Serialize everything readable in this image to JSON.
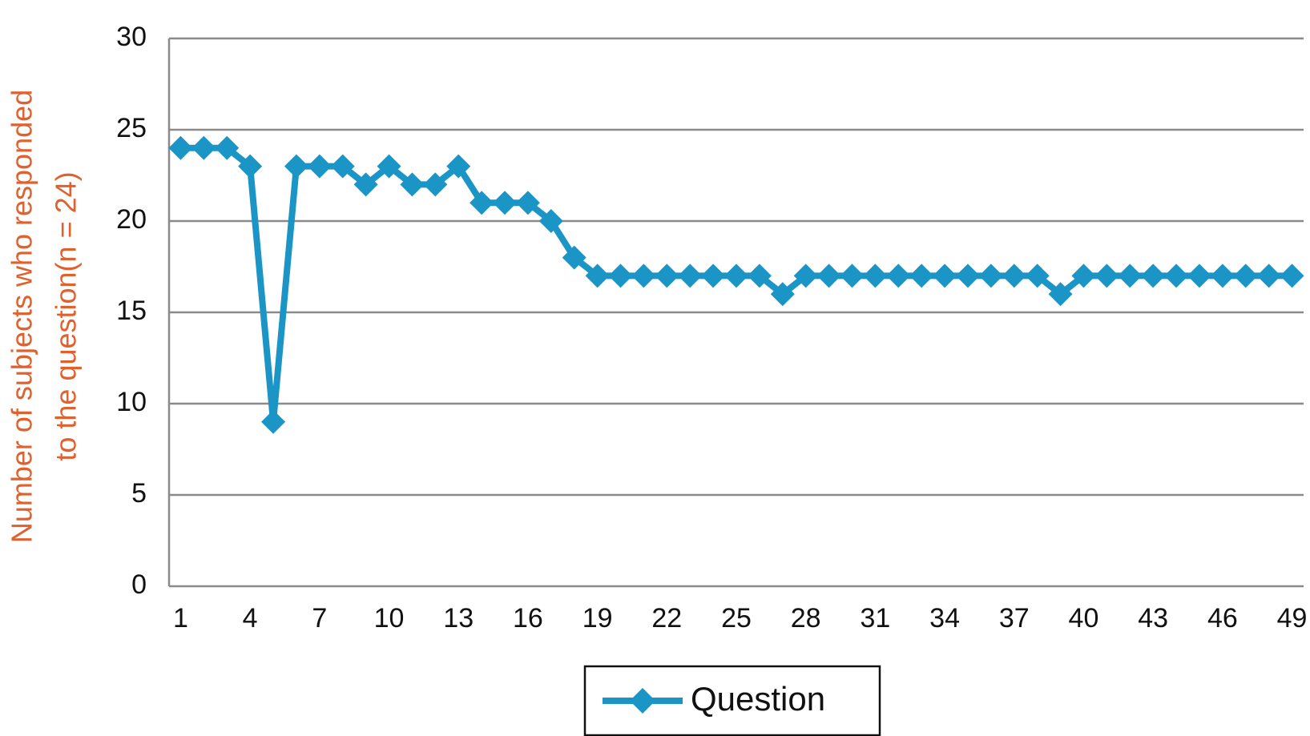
{
  "chart_data": {
    "type": "line",
    "y_label": [
      "Number of subjects who responded",
      "to the question(n = 24)"
    ],
    "categories": [
      "1",
      null,
      null,
      "4",
      null,
      null,
      "7",
      null,
      null,
      "10",
      null,
      null,
      "13",
      null,
      null,
      "16",
      null,
      null,
      "19",
      null,
      null,
      "22",
      null,
      null,
      "25",
      null,
      null,
      "28",
      null,
      null,
      "31",
      null,
      null,
      "34",
      null,
      null,
      "37",
      null,
      null,
      "40",
      null,
      null,
      "43",
      null,
      null,
      "46",
      null,
      null,
      "49"
    ],
    "series": [
      {
        "name": "Question",
        "color": "#1b95c6",
        "values": [
          24,
          24,
          24,
          23,
          9,
          23,
          23,
          23,
          22,
          23,
          22,
          22,
          23,
          21,
          21,
          21,
          20,
          18,
          17,
          17,
          17,
          17,
          17,
          17,
          17,
          17,
          16,
          17,
          17,
          17,
          17,
          17,
          17,
          17,
          17,
          17,
          17,
          17,
          16,
          17,
          17,
          17,
          17,
          17,
          17,
          17,
          17,
          17,
          17
        ]
      }
    ],
    "ylim": [
      0,
      30
    ],
    "yticks": [
      0,
      5,
      10,
      15,
      20,
      25,
      30
    ],
    "grid": true
  }
}
